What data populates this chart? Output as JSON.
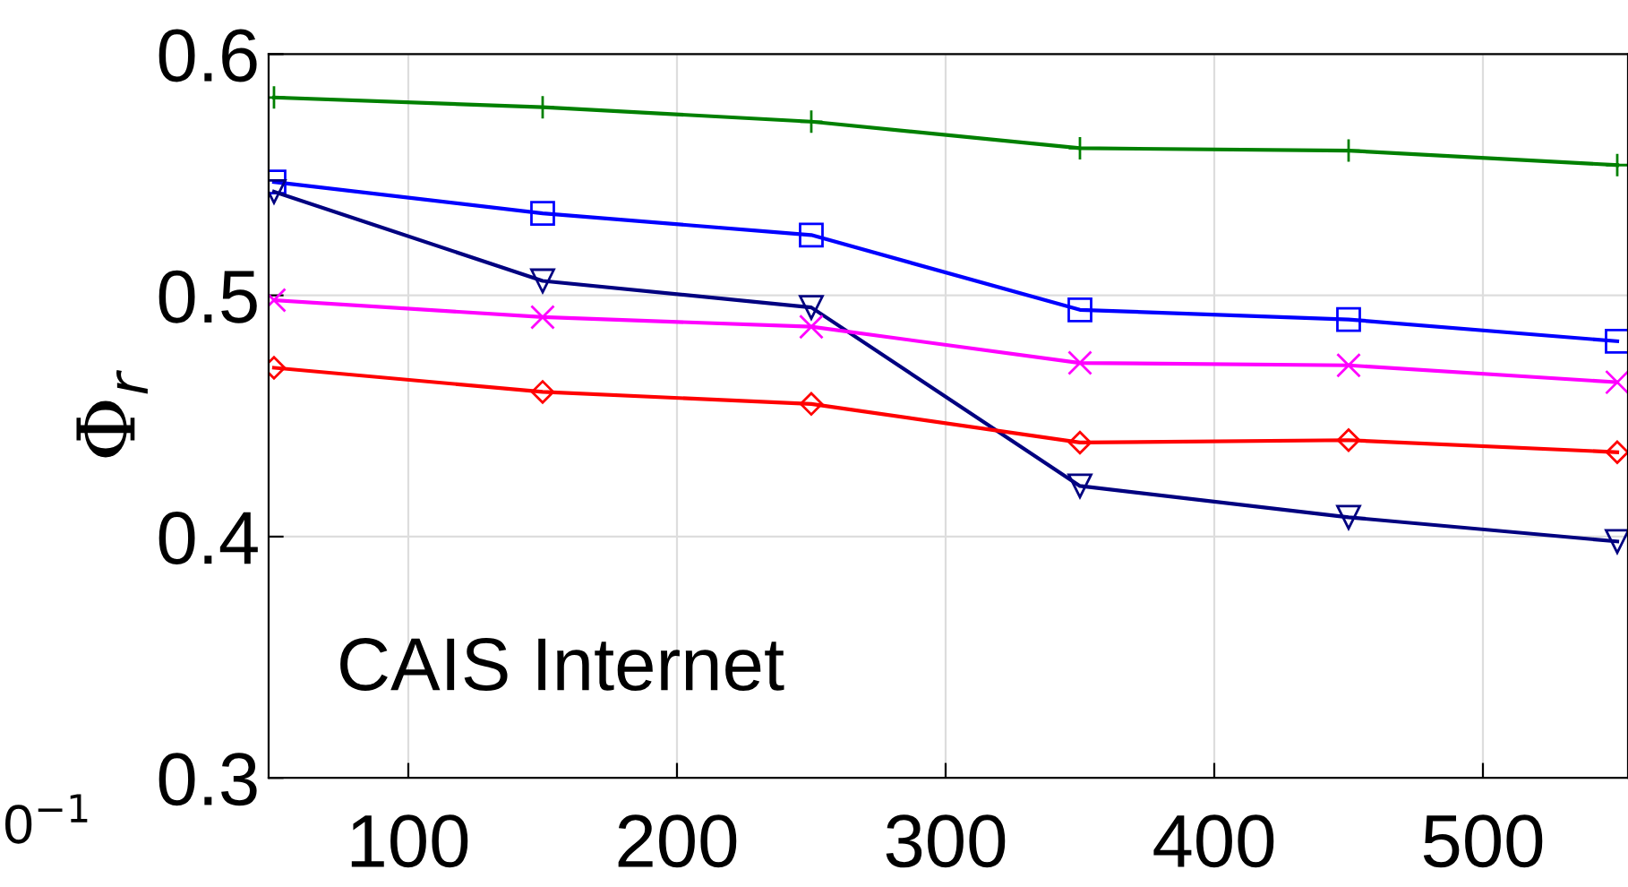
{
  "chart_data": {
    "type": "line",
    "ylabel": "Φ$_{r}$",
    "annotations": [
      "CAIS Internet",
      "0$^{−1}$"
    ],
    "x": [
      50,
      150,
      250,
      350,
      450,
      550
    ],
    "xlim": [
      48,
      554
    ],
    "xticks": [
      100,
      200,
      300,
      400,
      500
    ],
    "ylim": [
      0.3,
      0.6
    ],
    "yticks": [
      0.3,
      0.4,
      0.5,
      0.6
    ],
    "grid": true,
    "series": [
      {
        "color": "#008000",
        "marker": "plus",
        "values": [
          0.582,
          0.578,
          0.572,
          0.561,
          0.56,
          0.554
        ]
      },
      {
        "color": "#0000ff",
        "marker": "square",
        "values": [
          0.547,
          0.534,
          0.525,
          0.494,
          0.49,
          0.481
        ]
      },
      {
        "color": "#000080",
        "marker": "triangle_down",
        "values": [
          0.543,
          0.506,
          0.495,
          0.421,
          0.408,
          0.398
        ]
      },
      {
        "color": "#ff00ff",
        "marker": "cross",
        "values": [
          0.498,
          0.491,
          0.487,
          0.472,
          0.471,
          0.464
        ]
      },
      {
        "color": "#ff0000",
        "marker": "diamond",
        "values": [
          0.47,
          0.46,
          0.455,
          0.439,
          0.44,
          0.435
        ]
      }
    ]
  }
}
